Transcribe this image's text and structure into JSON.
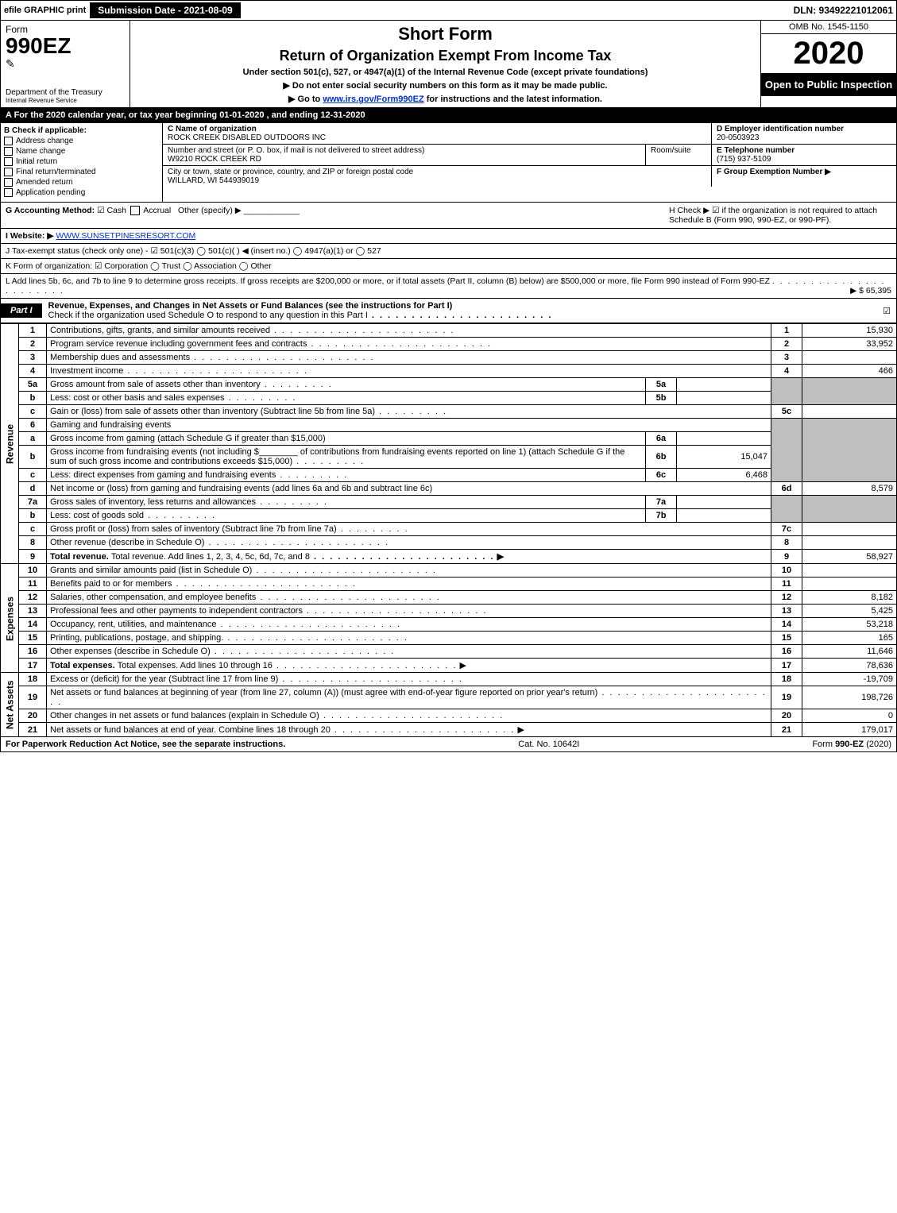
{
  "top": {
    "efile": "efile GRAPHIC print",
    "submission_btn": "Submission Date - 2021-08-09",
    "dln": "DLN: 93492221012061"
  },
  "header": {
    "form_label": "Form",
    "form_no": "990EZ",
    "dept": "Department of the Treasury",
    "irs": "Internal Revenue Service",
    "short_form": "Short Form",
    "return_title": "Return of Organization Exempt From Income Tax",
    "under_section": "Under section 501(c), 527, or 4947(a)(1) of the Internal Revenue Code (except private foundations)",
    "instr1_prefix": "▶ Do not enter social security numbers on this form as it may be made public.",
    "instr2_prefix": "▶ Go to ",
    "instr2_link": "www.irs.gov/Form990EZ",
    "instr2_suffix": " for instructions and the latest information.",
    "omb": "OMB No. 1545-1150",
    "year": "2020",
    "open_public": "Open to Public Inspection"
  },
  "section_a": "A For the 2020 calendar year, or tax year beginning 01-01-2020 , and ending 12-31-2020",
  "box_b": {
    "title": "B Check if applicable:",
    "opts": [
      "Address change",
      "Name change",
      "Initial return",
      "Final return/terminated",
      "Amended return",
      "Application pending"
    ]
  },
  "box_c": {
    "c_label": "C Name of organization",
    "c_value": "ROCK CREEK DISABLED OUTDOORS INC",
    "street_label": "Number and street (or P. O. box, if mail is not delivered to street address)",
    "street_value": "W9210 ROCK CREEK RD",
    "room_label": "Room/suite",
    "city_label": "City or town, state or province, country, and ZIP or foreign postal code",
    "city_value": "WILLARD, WI  544939019"
  },
  "box_d": {
    "label": "D Employer identification number",
    "value": "20-0503923"
  },
  "box_e": {
    "label": "E Telephone number",
    "value": "(715) 937-5109"
  },
  "box_f": {
    "label": "F Group Exemption Number  ▶",
    "value": ""
  },
  "g": {
    "label": "G Accounting Method:",
    "opts": [
      "Cash",
      "Accrual",
      "Other (specify) ▶"
    ],
    "h_text": "H  Check ▶ ☑ if the organization is not required to attach Schedule B (Form 990, 990-EZ, or 990-PF)."
  },
  "i": {
    "label": "I Website: ▶",
    "value": "WWW.SUNSETPINESRESORT.COM"
  },
  "j": "J Tax-exempt status (check only one) - ☑ 501(c)(3)  ◯ 501(c)(  ) ◀ (insert no.)  ◯ 4947(a)(1) or  ◯ 527",
  "k": "K Form of organization:  ☑ Corporation  ◯ Trust  ◯ Association  ◯ Other",
  "l": {
    "text": "L Add lines 5b, 6c, and 7b to line 9 to determine gross receipts. If gross receipts are $200,000 or more, or if total assets (Part II, column (B) below) are $500,000 or more, file Form 990 instead of Form 990-EZ",
    "amount": "▶ $ 65,395"
  },
  "part1": {
    "tab": "Part I",
    "title": "Revenue, Expenses, and Changes in Net Assets or Fund Balances (see the instructions for Part I)",
    "checkline": "Check if the organization used Schedule O to respond to any question in this Part I"
  },
  "side_labels": {
    "revenue": "Revenue",
    "expenses": "Expenses",
    "netassets": "Net Assets"
  },
  "lines": {
    "1": {
      "desc": "Contributions, gifts, grants, and similar amounts received",
      "val": "15,930"
    },
    "2": {
      "desc": "Program service revenue including government fees and contracts",
      "val": "33,952"
    },
    "3": {
      "desc": "Membership dues and assessments",
      "val": ""
    },
    "4": {
      "desc": "Investment income",
      "val": "466"
    },
    "5a": {
      "desc": "Gross amount from sale of assets other than inventory",
      "mid": ""
    },
    "5b": {
      "desc": "Less: cost or other basis and sales expenses",
      "mid": ""
    },
    "5c": {
      "desc": "Gain or (loss) from sale of assets other than inventory (Subtract line 5b from line 5a)",
      "val": ""
    },
    "6": {
      "desc": "Gaming and fundraising events"
    },
    "6a": {
      "desc": "Gross income from gaming (attach Schedule G if greater than $15,000)",
      "mid": ""
    },
    "6b": {
      "desc_pre": "Gross income from fundraising events (not including $",
      "desc_mid": " of contributions from fundraising events reported on line 1) (attach Schedule G if the sum of such gross income and contributions exceeds $15,000)",
      "mid": "15,047"
    },
    "6c": {
      "desc": "Less: direct expenses from gaming and fundraising events",
      "mid": "6,468"
    },
    "6d": {
      "desc": "Net income or (loss) from gaming and fundraising events (add lines 6a and 6b and subtract line 6c)",
      "val": "8,579"
    },
    "7a": {
      "desc": "Gross sales of inventory, less returns and allowances",
      "mid": ""
    },
    "7b": {
      "desc": "Less: cost of goods sold",
      "mid": ""
    },
    "7c": {
      "desc": "Gross profit or (loss) from sales of inventory (Subtract line 7b from line 7a)",
      "val": ""
    },
    "8": {
      "desc": "Other revenue (describe in Schedule O)",
      "val": ""
    },
    "9": {
      "desc": "Total revenue. Add lines 1, 2, 3, 4, 5c, 6d, 7c, and 8",
      "val": "58,927"
    },
    "10": {
      "desc": "Grants and similar amounts paid (list in Schedule O)",
      "val": ""
    },
    "11": {
      "desc": "Benefits paid to or for members",
      "val": ""
    },
    "12": {
      "desc": "Salaries, other compensation, and employee benefits",
      "val": "8,182"
    },
    "13": {
      "desc": "Professional fees and other payments to independent contractors",
      "val": "5,425"
    },
    "14": {
      "desc": "Occupancy, rent, utilities, and maintenance",
      "val": "53,218"
    },
    "15": {
      "desc": "Printing, publications, postage, and shipping.",
      "val": "165"
    },
    "16": {
      "desc": "Other expenses (describe in Schedule O)",
      "val": "11,646"
    },
    "17": {
      "desc": "Total expenses. Add lines 10 through 16",
      "val": "78,636"
    },
    "18": {
      "desc": "Excess or (deficit) for the year (Subtract line 17 from line 9)",
      "val": "-19,709"
    },
    "19": {
      "desc": "Net assets or fund balances at beginning of year (from line 27, column (A)) (must agree with end-of-year figure reported on prior year's return)",
      "val": "198,726"
    },
    "20": {
      "desc": "Other changes in net assets or fund balances (explain in Schedule O)",
      "val": "0"
    },
    "21": {
      "desc": "Net assets or fund balances at end of year. Combine lines 18 through 20",
      "val": "179,017"
    }
  },
  "footer": {
    "left": "For Paperwork Reduction Act Notice, see the separate instructions.",
    "center": "Cat. No. 10642I",
    "right": "Form 990-EZ (2020)"
  },
  "colors": {
    "black": "#000000",
    "grey": "#bfbfbf",
    "link": "#0033cc",
    "bg": "#ffffff"
  }
}
